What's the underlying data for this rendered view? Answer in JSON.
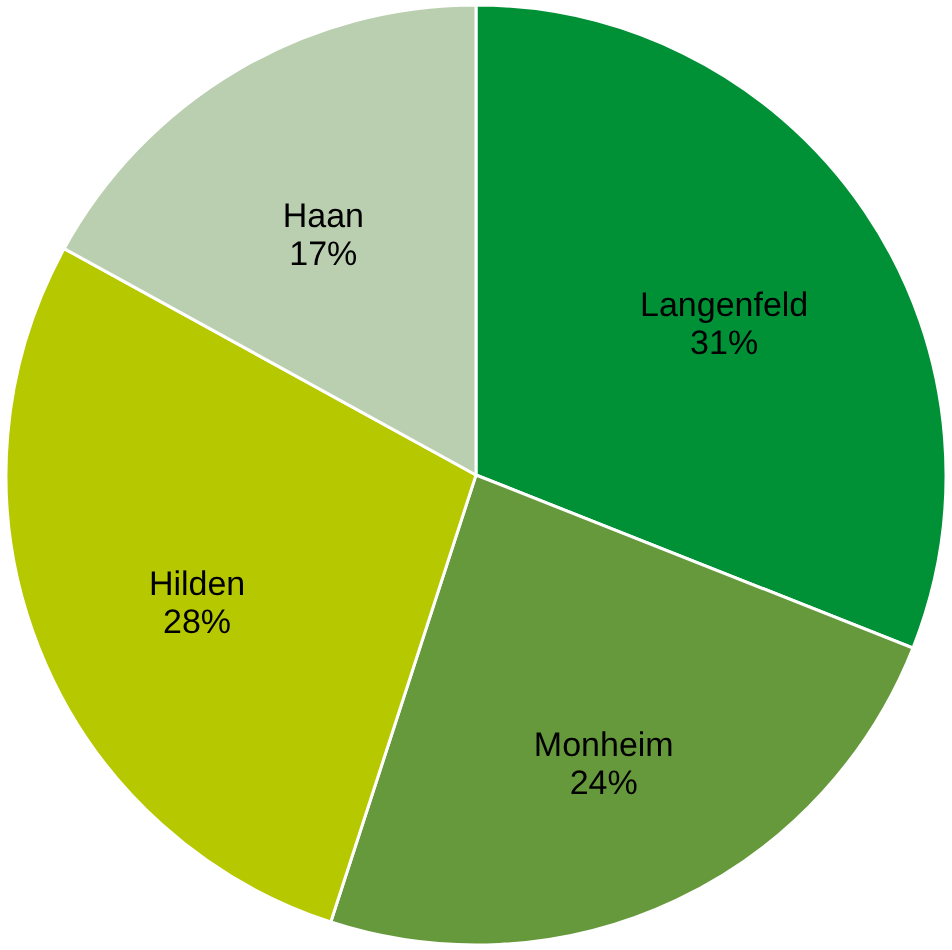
{
  "chart_data": {
    "type": "pie",
    "categories": [
      "Langenfeld",
      "Monheim",
      "Hilden",
      "Haan"
    ],
    "values": [
      31,
      24,
      28,
      17
    ],
    "colors": [
      "#009036",
      "#66993c",
      "#b5c800",
      "#bacfb0"
    ],
    "value_labels": [
      "31%",
      "24%",
      "28%",
      "17%"
    ],
    "legend": false
  }
}
